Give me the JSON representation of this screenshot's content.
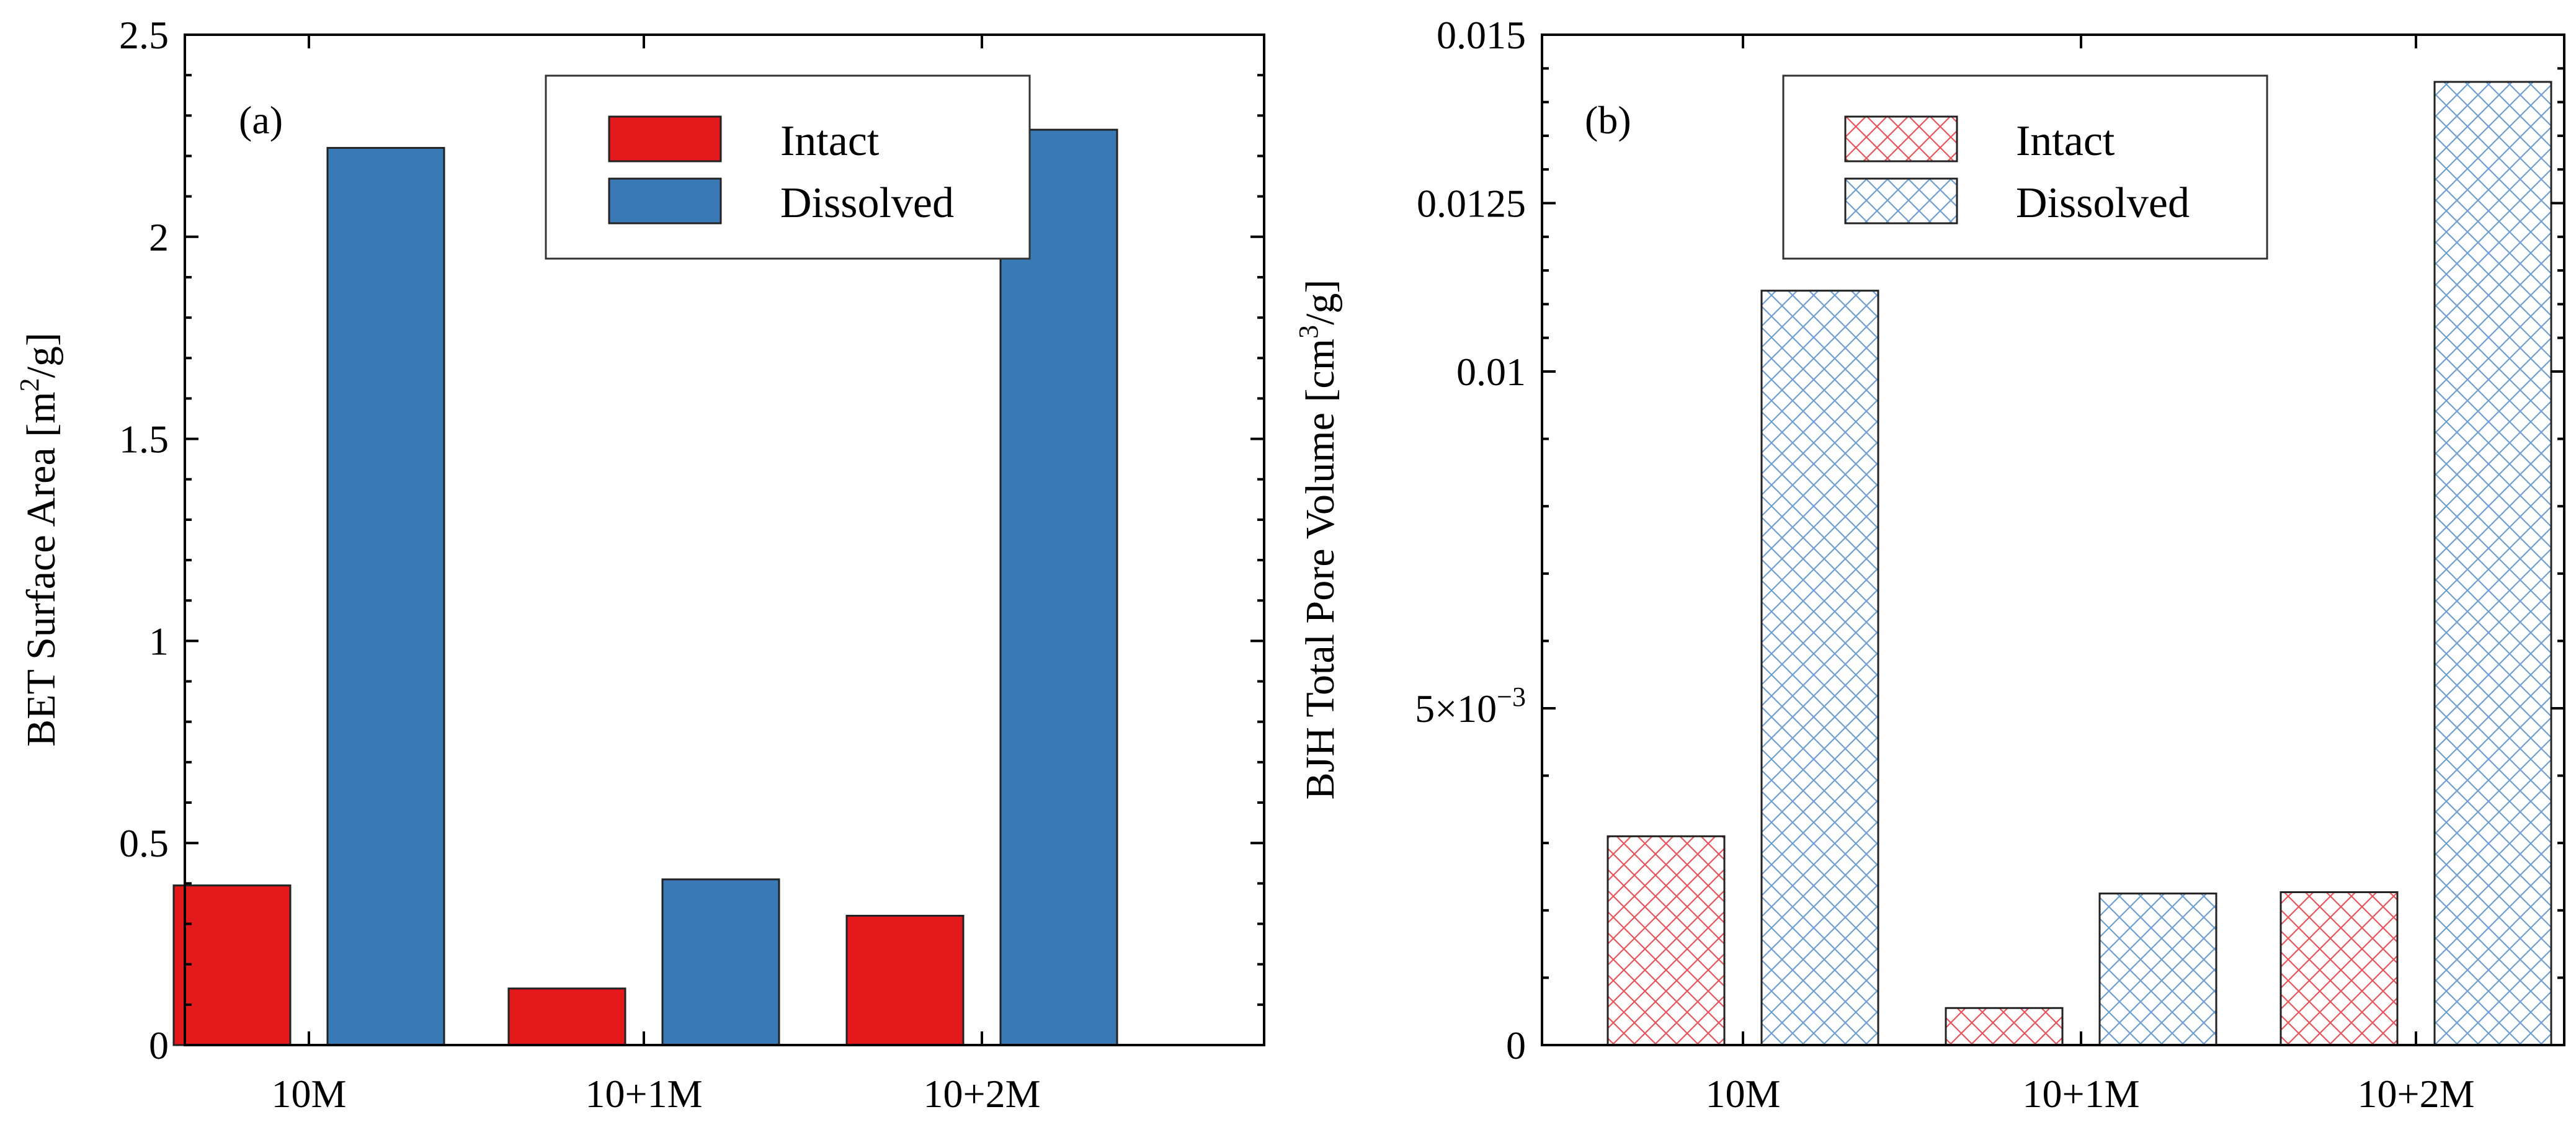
{
  "chart_data": [
    {
      "type": "bar",
      "panel_label": "(a)",
      "categories": [
        "10M",
        "10+1M",
        "10+2M"
      ],
      "series": [
        {
          "name": "Intact",
          "values": [
            0.395,
            0.14,
            0.32
          ],
          "color": "#e3191c",
          "fill": "solid"
        },
        {
          "name": "Dissolved",
          "values": [
            2.22,
            0.41,
            2.265
          ],
          "color": "#3979b5",
          "fill": "solid"
        }
      ],
      "ylim": [
        0,
        2.5
      ],
      "yticks": [
        {
          "value": 0,
          "label": "0"
        },
        {
          "value": 0.5,
          "label": "0.5"
        },
        {
          "value": 1,
          "label": "1"
        },
        {
          "value": 1.5,
          "label": "1.5"
        },
        {
          "value": 2,
          "label": "2"
        },
        {
          "value": 2.5,
          "label": "2.5"
        }
      ],
      "ylabel": {
        "main": "BET Surface Area [m",
        "sup": "2",
        "tail": "/g]"
      },
      "xlabel": "",
      "legend": {
        "position": "top-center",
        "entries": [
          "Intact",
          "Dissolved"
        ]
      },
      "grid": false
    },
    {
      "type": "bar",
      "panel_label": "(b)",
      "categories": [
        "10M",
        "10+1M",
        "10+2M"
      ],
      "series": [
        {
          "name": "Intact",
          "values": [
            0.0031,
            0.00055,
            0.00227
          ],
          "color": "#e3191c",
          "fill": "crosshatch"
        },
        {
          "name": "Dissolved",
          "values": [
            0.0112,
            0.00225,
            0.0143
          ],
          "color": "#3979b5",
          "fill": "crosshatch"
        }
      ],
      "ylim": [
        0,
        0.015
      ],
      "yticks": [
        {
          "value": 0,
          "label": "0"
        },
        {
          "value": 0.005,
          "label": "5×10",
          "sup": "−3"
        },
        {
          "value": 0.01,
          "label": "0.01"
        },
        {
          "value": 0.0125,
          "label": "0.0125"
        },
        {
          "value": 0.015,
          "label": "0.015"
        }
      ],
      "ylabel": {
        "main": "BJH Total Pore Volume [cm",
        "sup": "3",
        "tail": "/g]"
      },
      "xlabel": "",
      "legend": {
        "position": "top-center",
        "entries": [
          "Intact",
          "Dissolved"
        ]
      },
      "grid": false
    }
  ]
}
